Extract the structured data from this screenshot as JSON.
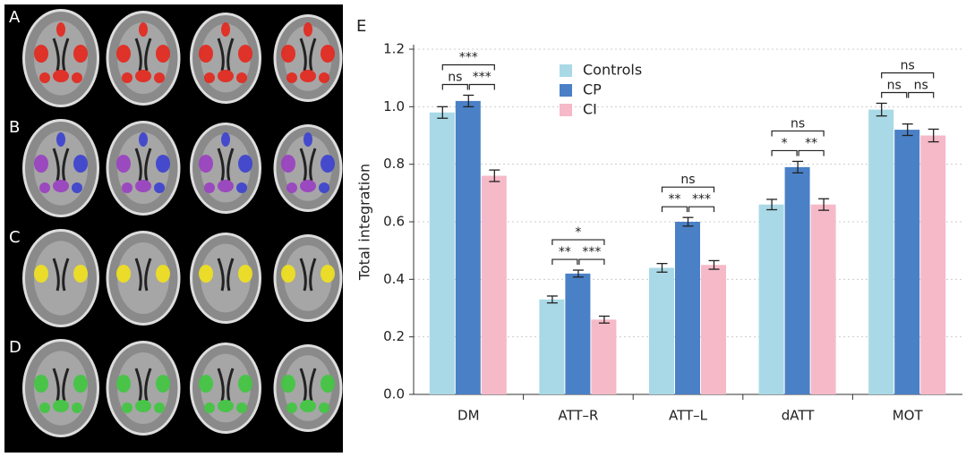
{
  "brain_panels": [
    "A",
    "B",
    "C",
    "D"
  ],
  "chart_data": {
    "type": "bar",
    "panel_label": "E",
    "y_label": "Total integration",
    "categories": [
      "DM",
      "ATT–R",
      "ATT–L",
      "dATT",
      "MOT"
    ],
    "series": [
      {
        "name": "Controls",
        "color": "#a9d9e6",
        "values": [
          0.98,
          0.33,
          0.44,
          0.66,
          0.99
        ],
        "errors": [
          0.02,
          0.012,
          0.015,
          0.018,
          0.022
        ]
      },
      {
        "name": "CP",
        "color": "#4a80c6",
        "values": [
          1.02,
          0.42,
          0.6,
          0.79,
          0.92
        ],
        "errors": [
          0.02,
          0.012,
          0.015,
          0.02,
          0.02
        ]
      },
      {
        "name": "CI",
        "color": "#f6b9c8",
        "values": [
          0.76,
          0.26,
          0.45,
          0.66,
          0.9
        ],
        "errors": [
          0.02,
          0.012,
          0.015,
          0.02,
          0.022
        ]
      }
    ],
    "significance": [
      [
        "ns",
        "***",
        "***"
      ],
      [
        "**",
        "***",
        "*"
      ],
      [
        "**",
        "***",
        "ns"
      ],
      [
        "*",
        "**",
        "ns"
      ],
      [
        "ns",
        "ns",
        "ns"
      ]
    ],
    "ylim": [
      0,
      1.2
    ],
    "yticks": [
      {
        "value": 0,
        "label": "0.0"
      },
      0.2,
      0.4,
      0.6,
      0.8,
      {
        "value": 1,
        "label": "1.0"
      },
      1.2
    ],
    "grid": true
  }
}
